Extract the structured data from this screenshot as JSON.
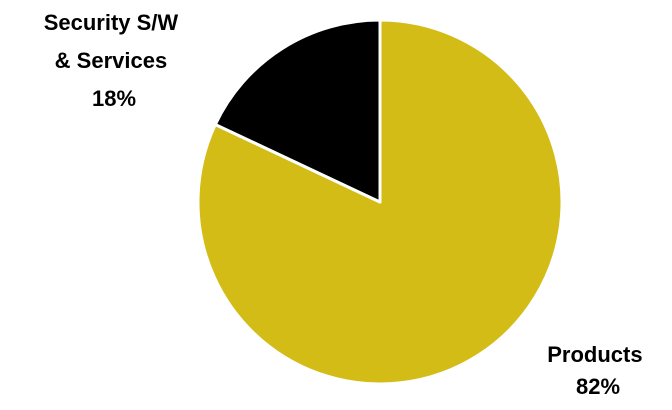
{
  "chart_data": {
    "type": "pie",
    "title": "",
    "slices": [
      {
        "label_lines": [
          "Products"
        ],
        "label": "Products",
        "percent_label": "82%",
        "value": 82,
        "color": "#D4BC17"
      },
      {
        "label_lines": [
          "Security S/W",
          "& Services"
        ],
        "label": "Security S/W & Services",
        "percent_label": "18%",
        "value": 18,
        "color": "#000000"
      }
    ],
    "start_angle_deg": 0,
    "direction": "clockwise",
    "slice_border_color": "#ffffff",
    "legend": "none"
  }
}
